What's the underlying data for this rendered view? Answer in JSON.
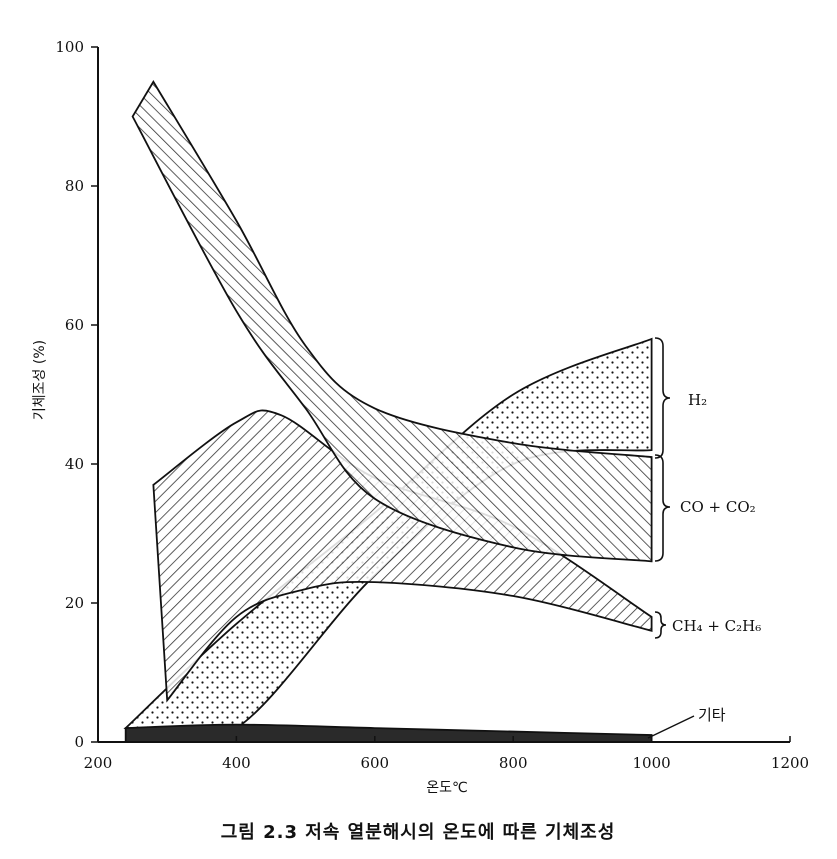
{
  "chart_data": {
    "type": "area",
    "caption": "그림 2.3  저속 열분해시의 온도에 따른 기체조성",
    "xlabel": "온도℃",
    "ylabel": "기체조성 (%)",
    "xlim": [
      200,
      1200
    ],
    "ylim": [
      0,
      100
    ],
    "x_ticks": [
      200,
      400,
      600,
      800,
      1000,
      1200
    ],
    "y_ticks": [
      0,
      20,
      40,
      60,
      80,
      100
    ],
    "grid": false,
    "series": [
      {
        "name": "H₂",
        "upper": [
          [
            240,
            2
          ],
          [
            400,
            17
          ],
          [
            600,
            33
          ],
          [
            800,
            50
          ],
          [
            1000,
            58
          ]
        ],
        "lower": [
          [
            260,
            2
          ],
          [
            400,
            2
          ],
          [
            600,
            24
          ],
          [
            800,
            40
          ],
          [
            1000,
            42
          ]
        ]
      },
      {
        "name": "CO + CO₂",
        "upper": [
          [
            280,
            95
          ],
          [
            400,
            75
          ],
          [
            500,
            57
          ],
          [
            600,
            48
          ],
          [
            800,
            43
          ],
          [
            1000,
            41
          ]
        ],
        "lower": [
          [
            250,
            90
          ],
          [
            400,
            62
          ],
          [
            500,
            48
          ],
          [
            600,
            35
          ],
          [
            800,
            28
          ],
          [
            1000,
            26
          ]
        ]
      },
      {
        "name": "CH₄ + C₂H₆",
        "upper": [
          [
            280,
            37
          ],
          [
            400,
            46
          ],
          [
            465,
            47
          ],
          [
            600,
            38
          ],
          [
            800,
            31
          ],
          [
            1000,
            18
          ]
        ],
        "lower": [
          [
            300,
            6
          ],
          [
            400,
            18
          ],
          [
            500,
            22
          ],
          [
            600,
            23
          ],
          [
            800,
            21
          ],
          [
            1000,
            16
          ]
        ]
      },
      {
        "name": "기타",
        "upper": [
          [
            240,
            2
          ],
          [
            400,
            2.5
          ],
          [
            600,
            2
          ],
          [
            800,
            1.5
          ],
          [
            1000,
            1
          ]
        ],
        "lower": [
          [
            240,
            0
          ],
          [
            1000,
            0
          ]
        ]
      }
    ]
  }
}
